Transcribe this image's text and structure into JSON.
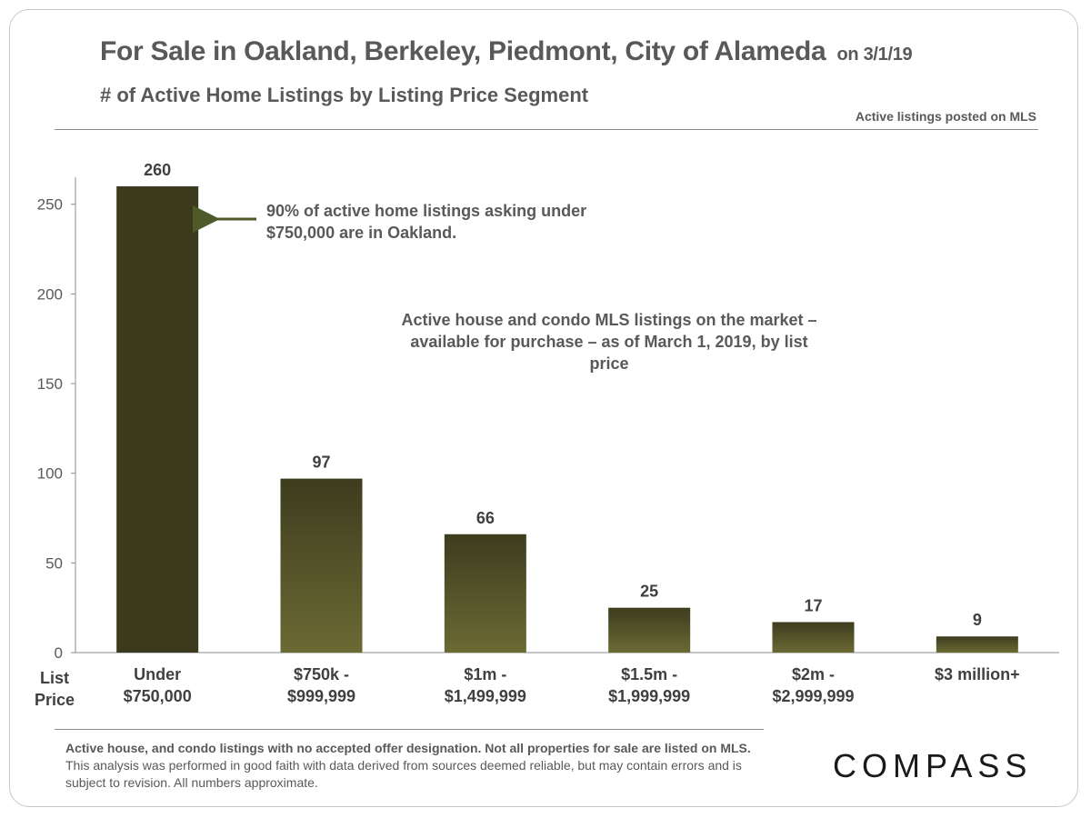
{
  "title": {
    "main": "For Sale in Oakland, Berkeley, Piedmont, City of Alameda",
    "date": "on 3/1/19"
  },
  "subtitle": "# of Active Home Listings by Listing Price Segment",
  "source_note": "Active listings  posted on MLS",
  "annotations": {
    "oakland": "90% of active home listings asking under $750,000 are in Oakland.",
    "description": "Active house and condo MLS listings on the market – available for purchase – as of March 1, 2019, by list price"
  },
  "x_axis_title": "List\nPrice",
  "footer": {
    "bold": "Active house, and condo listings with no accepted offer designation. Not all properties for sale are listed on MLS.",
    "normal": " This analysis was performed in good faith with data derived from sources deemed reliable, but may contain errors and is subject to revision. All numbers approximate."
  },
  "logo": "COMPASS",
  "colors": {
    "bar_dark": "#3b3a1c",
    "bar_top": "#3d3c1e",
    "bar_bottom": "#6b6a34",
    "arrow": "#4e5a2a"
  },
  "chart_data": {
    "type": "bar",
    "categories": [
      "Under\n$750,000",
      "$750k -\n$999,999",
      "$1m -\n$1,499,999",
      "$1.5m -\n$1,999,999",
      "$2m -\n$2,999,999",
      "$3 million+"
    ],
    "values": [
      260,
      97,
      66,
      25,
      17,
      9
    ],
    "ylim": [
      0,
      260
    ],
    "yticks": [
      0,
      50,
      100,
      150,
      200,
      250
    ],
    "grid": false,
    "data_labels": true
  }
}
